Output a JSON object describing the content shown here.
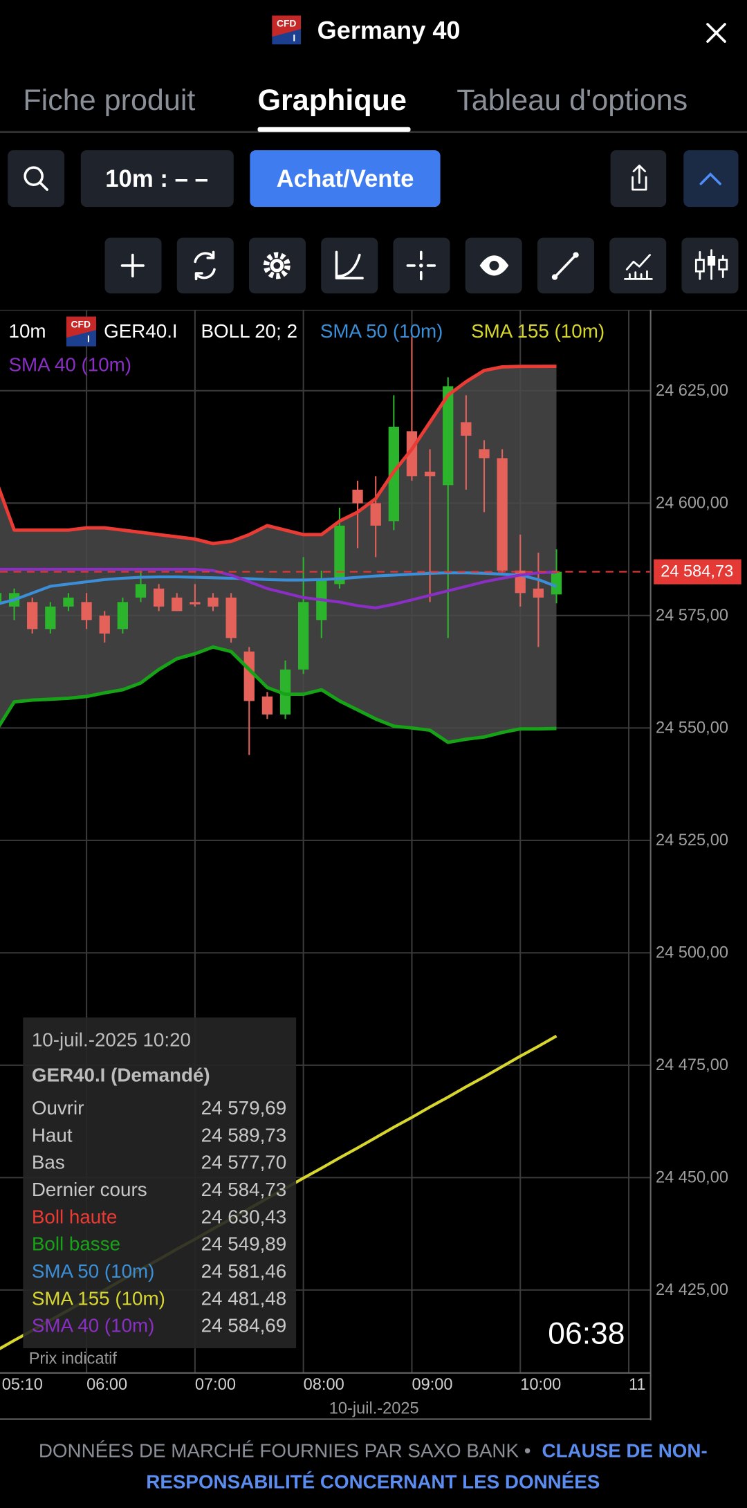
{
  "header": {
    "badge": {
      "top": "CFD",
      "bottom": "I"
    },
    "title": "Germany 40"
  },
  "tabs": [
    "Fiche produit",
    "Graphique",
    "Tableau d'options"
  ],
  "toolbar": {
    "interval": "10m : – –",
    "trade": "Achat/Vente"
  },
  "chart_data": {
    "type": "candlestick",
    "legend": {
      "interval": "10m",
      "symbol": "GER40.I",
      "indicator": "BOLL 20; 2"
    },
    "categories": [
      "05:10",
      null,
      null,
      null,
      null,
      "06:00",
      null,
      null,
      null,
      null,
      null,
      "07:00",
      null,
      null,
      null,
      null,
      null,
      "08:00",
      null,
      null,
      null,
      null,
      null,
      "09:00",
      null,
      null,
      null,
      null,
      null,
      "10:00",
      null,
      null,
      null,
      null,
      null,
      "11"
    ],
    "x_caption": "10-juil.-2025",
    "candles": {
      "up_color": "#2cb52c",
      "down_color": "#e5625b",
      "open": [
        24578,
        24577,
        24578,
        24572,
        24577,
        24578,
        24575,
        24572,
        24579,
        24581,
        24579,
        24578,
        24579,
        24579,
        24567,
        24557,
        24553,
        24563,
        24574,
        24582,
        24603,
        24600,
        24596,
        24616,
        24607,
        24604,
        24618,
        24612,
        24610,
        24585,
        24581,
        24579.69,
        null,
        null,
        null,
        null
      ],
      "high": [
        24582,
        24581,
        24579,
        24578,
        24580,
        24580,
        24576,
        24579,
        24585,
        24582,
        24580,
        24582,
        24580,
        24580,
        24568,
        24558,
        24565,
        24588,
        24585,
        24599,
        24605,
        24606,
        24624,
        24637,
        24612,
        24628,
        24624,
        24614,
        24612,
        24593,
        24589,
        24589.73,
        null,
        null,
        null,
        null
      ],
      "low": [
        24574,
        24574,
        24571,
        24571,
        24576,
        24572,
        24569,
        24571,
        24578,
        24576,
        24576,
        24577,
        24576,
        24569,
        24544,
        24552,
        24552,
        24562,
        24570,
        24581,
        24590,
        24588,
        24594,
        24605,
        24578,
        24570,
        24603,
        24598,
        24584,
        24577,
        24568,
        24577.7,
        null,
        null,
        null,
        null
      ],
      "close": [
        24580,
        24580,
        24572,
        24577,
        24579,
        24574,
        24571,
        24578,
        24582,
        24577,
        24576,
        24577.5,
        24577,
        24570,
        24556,
        24553,
        24563,
        24578,
        24583,
        24595,
        24600,
        24595,
        24617,
        24606,
        24606,
        24626,
        24615,
        24610,
        24585,
        24580,
        24579,
        24584.73,
        null,
        null,
        null,
        null
      ]
    },
    "bollinger": {
      "fill": "#4a4a4a",
      "upper": {
        "color": "#ea3b35",
        "values": [
          24605,
          24594,
          24594,
          24594,
          24594,
          24594.5,
          24594.5,
          24594,
          24593.5,
          24593,
          24592.5,
          24592,
          24591,
          24591.5,
          24593,
          24595,
          24594,
          24593,
          24593,
          24596,
          24598,
          24601,
          24607,
          24612,
          24618,
          24624,
          24627,
          24629.5,
          24630.3,
          24630.4,
          24630.4,
          24630.43,
          null,
          null,
          null,
          null
        ]
      },
      "lower": {
        "color": "#17a317",
        "values": [
          24549.4,
          24555.8,
          24556.2,
          24556.4,
          24556.6,
          24557,
          24557.8,
          24558.5,
          24560,
          24563,
          24565.4,
          24566.5,
          24568,
          24567,
          24563,
          24559,
          24557.5,
          24557.5,
          24558.5,
          24556,
          24554,
          24552,
          24550.4,
          24550,
          24549.5,
          24546.8,
          24547.5,
          24548,
          24549,
          24549.8,
          24549.8,
          24549.89,
          null,
          null,
          null,
          null
        ]
      }
    },
    "series": [
      {
        "name": "SMA 50 (10m)",
        "color": "#3b8fd8",
        "values": [
          24577.5,
          24578.5,
          24580,
          24581.5,
          24582,
          24582.5,
          24583,
          24583.3,
          24583.5,
          24583.6,
          24583.6,
          24583.5,
          24583.4,
          24583.3,
          24583.2,
          24583,
          24582.9,
          24582.9,
          24583,
          24583.2,
          24583.5,
          24583.8,
          24584,
          24584.2,
          24584.4,
          24584.5,
          24584.5,
          24584.4,
          24584.2,
          24584,
          24583,
          24581.46,
          null,
          null,
          null,
          null
        ]
      },
      {
        "name": "SMA 155 (10m)",
        "color": "#d6d62e",
        "values": [
          24411.5,
          24413.8,
          24416.0,
          24418.3,
          24420.5,
          24422.8,
          24425.0,
          24427.3,
          24429.6,
          24431.8,
          24434.1,
          24436.3,
          24438.6,
          24440.8,
          24443.1,
          24445.4,
          24447.6,
          24449.9,
          24452.1,
          24454.4,
          24456.6,
          24458.9,
          24461.2,
          24463.4,
          24465.7,
          24467.9,
          24470.2,
          24472.4,
          24474.7,
          24477.0,
          24479.2,
          24481.48,
          null,
          null,
          null,
          null
        ]
      },
      {
        "name": "SMA 40 (10m)",
        "color": "#8a2ec4",
        "values": [
          24585.3,
          24585.3,
          24585.3,
          24585.3,
          24585.3,
          24585.3,
          24585.3,
          24585.3,
          24585.3,
          24585.3,
          24585.3,
          24585.3,
          24585,
          24584,
          24582.5,
          24581,
          24580,
          24579,
          24578.5,
          24578,
          24577.2,
          24576.7,
          24577.5,
          24578.5,
          24579.5,
          24580.5,
          24581.5,
          24582.5,
          24583.3,
          24584,
          24584.5,
          24584.69,
          null,
          null,
          null,
          null
        ]
      }
    ],
    "ylim": [
      24406.5,
      24643
    ],
    "yticks": [
      {
        "value": 24425,
        "label": "24 425,00"
      },
      {
        "value": 24450,
        "label": "24 450,00"
      },
      {
        "value": 24475,
        "label": "24 475,00"
      },
      {
        "value": 24500,
        "label": "24 500,00"
      },
      {
        "value": 24525,
        "label": "24 525,00"
      },
      {
        "value": 24550,
        "label": "24 550,00"
      },
      {
        "value": 24575,
        "label": "24 575,00"
      },
      {
        "value": 24600,
        "label": "24 600,00"
      },
      {
        "value": 24625,
        "label": "24 625,00"
      }
    ],
    "grid": true,
    "last_price": {
      "value": 24584.73,
      "label": "24 584,73",
      "color": "#e53935"
    },
    "tooltip": {
      "date": "10-juil.-2025 10:20",
      "title": "GER40.I (Demandé)",
      "rows": [
        {
          "label": "Ouvrir",
          "value": "24 579,69"
        },
        {
          "label": "Haut",
          "value": "24 589,73"
        },
        {
          "label": "Bas",
          "value": "24 577,70"
        },
        {
          "label": "Dernier cours",
          "value": "24 584,73"
        },
        {
          "label": "Boll haute",
          "value": "24 630,43",
          "color": "#ea3b35"
        },
        {
          "label": "Boll basse",
          "value": "24 549,89",
          "color": "#17a317"
        },
        {
          "label": "SMA 50 (10m)",
          "value": "24 581,46",
          "color": "#3b8fd8"
        },
        {
          "label": "SMA 155 (10m)",
          "value": "24 481,48",
          "color": "#d6d62e"
        },
        {
          "label": "SMA 40 (10m)",
          "value": "24 584,69",
          "color": "#8a2ec4"
        }
      ]
    },
    "note": "Prix indicatif",
    "countdown": "06:38"
  },
  "footer": {
    "source": "DONNÉES DE MARCHÉ FOURNIES PAR SAXO BANK •",
    "link": [
      "CLAUSE DE NON-",
      "RESPONSABILITÉ CONCERNANT LES DONNÉES"
    ]
  }
}
